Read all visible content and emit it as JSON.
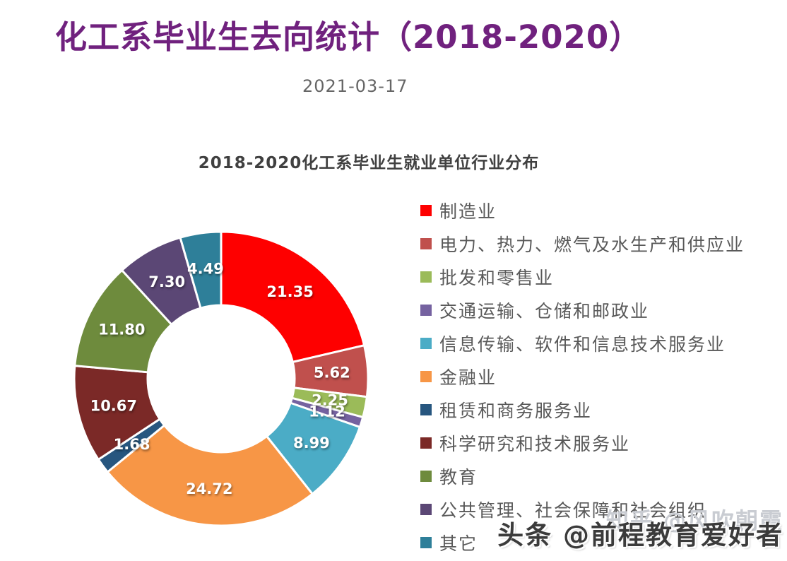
{
  "page": {
    "title": "化工系毕业生去向统计（2018-2020）",
    "date": "2021-03-17",
    "title_color": "#70217E",
    "background_color": "#FFFFFF"
  },
  "chart_data": {
    "type": "pie",
    "subtype": "donut",
    "title": "2018-2020化工系毕业生就业单位行业分布",
    "title_color": "#404040",
    "unit": "percent",
    "start_angle_deg": 0,
    "direction": "clockwise",
    "inner_radius_ratio": 0.5,
    "legend_position": "right",
    "label_style": "white-bold-inside",
    "series": [
      {
        "name": "制造业",
        "value": 21.35,
        "color": "#FE0000"
      },
      {
        "name": "电力、热力、燃气及水生产和供应业",
        "value": 5.62,
        "color": "#C0504D"
      },
      {
        "name": "批发和零售业",
        "value": 2.25,
        "color": "#9BBB59"
      },
      {
        "name": "交通运输、仓储和邮政业",
        "value": 1.12,
        "color": "#7562A0"
      },
      {
        "name": "信息传输、软件和信息技术服务业",
        "value": 8.99,
        "color": "#4BACC6"
      },
      {
        "name": "金融业",
        "value": 24.72,
        "color": "#F79646"
      },
      {
        "name": "租赁和商务服务业",
        "value": 1.68,
        "color": "#27567F"
      },
      {
        "name": "科学研究和技术服务业",
        "value": 10.67,
        "color": "#7B2927"
      },
      {
        "name": "教育",
        "value": 11.8,
        "color": "#6E8B3D"
      },
      {
        "name": "公共管理、社会保障和社会组织",
        "value": 7.3,
        "color": "#5B4775"
      },
      {
        "name": "其它",
        "value": 4.49,
        "color": "#2E7F99"
      }
    ]
  },
  "watermark": {
    "back": "知乎 @风吹朝霞",
    "front": "头条 @前程教育爱好者"
  }
}
